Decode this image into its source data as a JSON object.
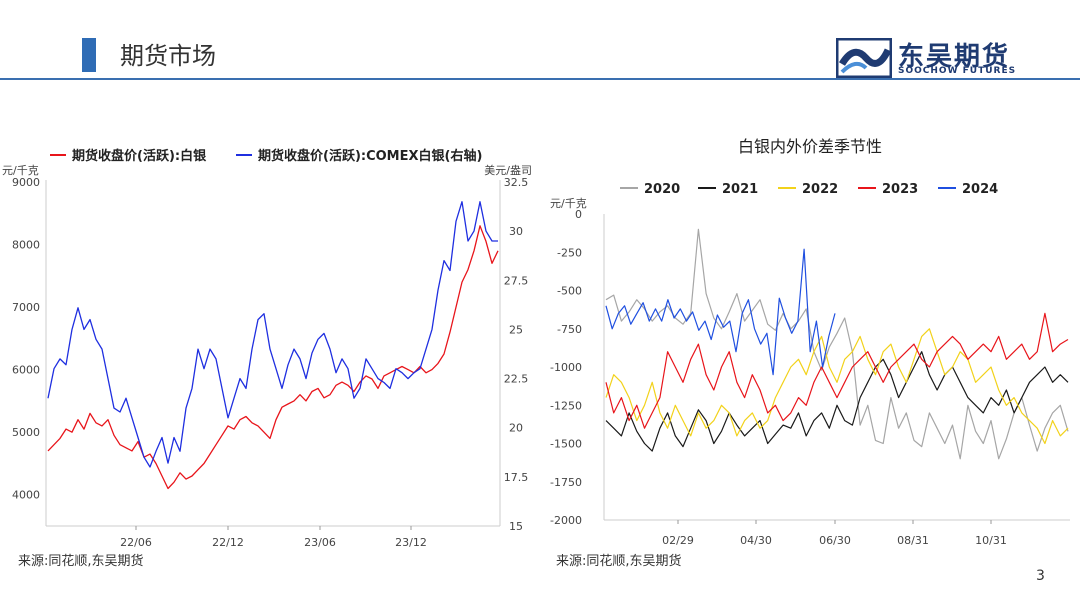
{
  "header": {
    "title": "期货市场",
    "page_number": "3"
  },
  "logo": {
    "cn": "东吴期货",
    "en": "SOOCHOW FUTURES"
  },
  "colors": {
    "accent": "#2f6cb5",
    "red": "#e8151b",
    "blue": "#1f2fe0",
    "gray": "#a6a6a6",
    "black": "#1a1a1a",
    "yellow": "#f2d21b"
  },
  "left_source": "来源:同花顺,东吴期货",
  "right_source": "来源:同花顺,东吴期货",
  "chart_data": [
    {
      "type": "line",
      "title": "",
      "legend": [
        "期货收盘价(活跃):白银",
        "期货收盘价(活跃):COMEX白银(右轴)"
      ],
      "left_unit": "元/千克",
      "right_unit": "美元/盎司",
      "ylim": [
        3500,
        9000
      ],
      "y_ticks": [
        "9000",
        "8000",
        "7000",
        "6000",
        "5000",
        "4000"
      ],
      "y2lim": [
        15,
        32.5
      ],
      "y2_ticks": [
        "32.5",
        "30",
        "27.5",
        "25",
        "22.5",
        "20",
        "17.5",
        "15"
      ],
      "x_ticks": [
        "22/06",
        "22/12",
        "23/06",
        "23/12"
      ],
      "series": [
        {
          "name": "期货收盘价(活跃):白银",
          "color": "#e8151b",
          "axis": "left",
          "values": [
            4700,
            4800,
            4900,
            5050,
            5000,
            5200,
            5050,
            5300,
            5150,
            5100,
            5200,
            4950,
            4800,
            4750,
            4700,
            4850,
            4600,
            4650,
            4500,
            4300,
            4100,
            4200,
            4350,
            4250,
            4300,
            4400,
            4500,
            4650,
            4800,
            4950,
            5100,
            5050,
            5200,
            5250,
            5150,
            5100,
            5000,
            4900,
            5200,
            5400,
            5450,
            5500,
            5600,
            5500,
            5650,
            5700,
            5550,
            5600,
            5750,
            5800,
            5750,
            5650,
            5800,
            5900,
            5850,
            5700,
            5900,
            5950,
            6000,
            6050,
            6000,
            5950,
            6050,
            5950,
            6000,
            6100,
            6250,
            6600,
            7000,
            7400,
            7600,
            7900,
            8300,
            8050,
            7700,
            7900
          ]
        },
        {
          "name": "期货收盘价(活跃):COMEX白银(右轴)",
          "color": "#1f2fe0",
          "axis": "right",
          "values": [
            21.5,
            23,
            23.5,
            23.2,
            25,
            26.1,
            25,
            25.5,
            24.5,
            24,
            22.5,
            21,
            20.8,
            21.5,
            20.5,
            19.5,
            18.5,
            18,
            18.8,
            19.5,
            18.2,
            19.5,
            18.8,
            21,
            22,
            24,
            23,
            24,
            23.5,
            22,
            20.5,
            21.5,
            22.5,
            22,
            24,
            25.5,
            25.8,
            24,
            23,
            22,
            23.2,
            24,
            23.5,
            22.5,
            23.8,
            24.5,
            24.8,
            24,
            22.8,
            23.5,
            23,
            21.5,
            22,
            23.5,
            23,
            22.5,
            22.3,
            22,
            23,
            22.8,
            22.5,
            22.8,
            23,
            24,
            25,
            27,
            28.5,
            28,
            30.5,
            31.5,
            29.5,
            30,
            31.5,
            30,
            29.5,
            29.5
          ]
        }
      ]
    },
    {
      "type": "line",
      "title": "白银内外价差季节性",
      "unit": "元/千克",
      "ylim": [
        -2000,
        0
      ],
      "y_ticks": [
        "0",
        "-250",
        "-500",
        "-750",
        "-1000",
        "-1250",
        "-1500",
        "-1750",
        "-2000"
      ],
      "x_ticks": [
        "02/29",
        "04/30",
        "06/30",
        "08/31",
        "10/31"
      ],
      "legend": [
        "2020",
        "2021",
        "2022",
        "2023",
        "2024"
      ],
      "series": [
        {
          "name": "2020",
          "color": "#a6a6a6",
          "values": [
            -560,
            -530,
            -700,
            -640,
            -560,
            -620,
            -700,
            -640,
            -600,
            -680,
            -720,
            -650,
            -100,
            -520,
            -680,
            -750,
            -640,
            -520,
            -700,
            -630,
            -560,
            -720,
            -760,
            -650,
            -750,
            -700,
            -620,
            -900,
            -1020,
            -870,
            -780,
            -680,
            -900,
            -1380,
            -1250,
            -1480,
            -1500,
            -1200,
            -1400,
            -1300,
            -1480,
            -1520,
            -1300,
            -1400,
            -1500,
            -1380,
            -1600,
            -1250,
            -1420,
            -1500,
            -1350,
            -1600,
            -1470,
            -1300,
            -1200,
            -1380,
            -1550,
            -1400,
            -1300,
            -1250,
            -1420
          ]
        },
        {
          "name": "2021",
          "color": "#1a1a1a",
          "values": [
            -1350,
            -1400,
            -1450,
            -1300,
            -1420,
            -1500,
            -1550,
            -1400,
            -1300,
            -1450,
            -1520,
            -1400,
            -1280,
            -1350,
            -1500,
            -1420,
            -1300,
            -1380,
            -1450,
            -1400,
            -1350,
            -1500,
            -1440,
            -1380,
            -1400,
            -1300,
            -1450,
            -1350,
            -1300,
            -1400,
            -1250,
            -1350,
            -1380,
            -1200,
            -1100,
            -1000,
            -950,
            -1050,
            -1200,
            -1100,
            -1000,
            -900,
            -1050,
            -1150,
            -1050,
            -1000,
            -1100,
            -1200,
            -1250,
            -1300,
            -1200,
            -1250,
            -1150,
            -1300,
            -1200,
            -1100,
            -1050,
            -1000,
            -1100,
            -1050,
            -1100
          ]
        },
        {
          "name": "2022",
          "color": "#f2d21b",
          "values": [
            -1200,
            -1050,
            -1100,
            -1200,
            -1350,
            -1250,
            -1100,
            -1300,
            -1400,
            -1250,
            -1350,
            -1450,
            -1300,
            -1400,
            -1350,
            -1250,
            -1300,
            -1450,
            -1350,
            -1300,
            -1400,
            -1350,
            -1200,
            -1100,
            -1000,
            -950,
            -1050,
            -900,
            -800,
            -1000,
            -1100,
            -950,
            -900,
            -800,
            -950,
            -1050,
            -900,
            -850,
            -1000,
            -1100,
            -950,
            -800,
            -750,
            -900,
            -1050,
            -1000,
            -900,
            -950,
            -1100,
            -1050,
            -1000,
            -1150,
            -1250,
            -1200,
            -1300,
            -1350,
            -1400,
            -1500,
            -1350,
            -1450,
            -1400
          ]
        },
        {
          "name": "2023",
          "color": "#e8151b",
          "values": [
            -1100,
            -1300,
            -1200,
            -1350,
            -1250,
            -1400,
            -1300,
            -1200,
            -900,
            -1000,
            -1100,
            -950,
            -850,
            -1050,
            -1150,
            -1000,
            -900,
            -1100,
            -1200,
            -1050,
            -1150,
            -1300,
            -1250,
            -1350,
            -1300,
            -1200,
            -1250,
            -1100,
            -1000,
            -1100,
            -1200,
            -1100,
            -1000,
            -950,
            -900,
            -1000,
            -1100,
            -1000,
            -950,
            -900,
            -850,
            -950,
            -1000,
            -900,
            -850,
            -800,
            -850,
            -950,
            -900,
            -850,
            -900,
            -800,
            -950,
            -900,
            -850,
            -950,
            -900,
            -650,
            -900,
            -850,
            -820
          ]
        },
        {
          "name": "2024",
          "color": "#1f4fe0",
          "values": [
            -600,
            -750,
            -650,
            -600,
            -720,
            -650,
            -580,
            -700,
            -620,
            -700,
            -560,
            -680,
            -620,
            -700,
            -640,
            -760,
            -700,
            -820,
            -660,
            -740,
            -700,
            -900,
            -650,
            -560,
            -750,
            -850,
            -780,
            -1050,
            -550,
            -680,
            -780,
            -700,
            -230,
            -900,
            -700,
            -1000,
            -800,
            -650
          ]
        }
      ]
    }
  ]
}
